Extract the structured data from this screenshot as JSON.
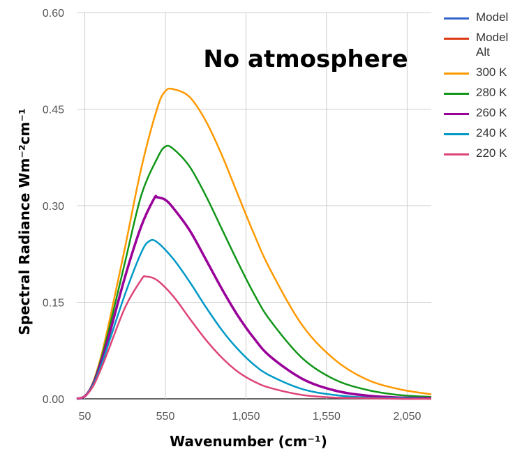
{
  "chart_data": {
    "type": "line",
    "title": "",
    "annotation": "No atmosphere",
    "xlabel": "Wavenumber (cm⁻¹)",
    "ylabel": "Spectral Radiance Wm⁻²cm⁻¹",
    "xlim": [
      0,
      2200
    ],
    "ylim": [
      0,
      0.6
    ],
    "x_ticks": [
      50,
      550,
      1050,
      1550,
      2050
    ],
    "x_tick_labels": [
      "50",
      "550",
      "1,050",
      "1,550",
      "2,050"
    ],
    "y_ticks": [
      0,
      0.15,
      0.3,
      0.45,
      0.6
    ],
    "y_tick_labels": [
      "0.00",
      "0.15",
      "0.30",
      "0.45",
      "0.60"
    ],
    "grid": true,
    "legend_position": "right",
    "series": [
      {
        "name": "Model",
        "color": "#3366cc",
        "x": [],
        "y": []
      },
      {
        "name": "Model Alt",
        "color": "#dc3912",
        "x": [],
        "y": []
      },
      {
        "name": "300 K",
        "color": "#ff9900",
        "x": [
          0,
          50,
          100,
          150,
          200,
          300,
          400,
          500,
          550,
          600,
          700,
          800,
          900,
          1000,
          1100,
          1200,
          1400,
          1600,
          1800,
          2000,
          2200
        ],
        "y": [
          0,
          0.004,
          0.025,
          0.065,
          0.118,
          0.236,
          0.358,
          0.452,
          0.478,
          0.481,
          0.469,
          0.432,
          0.379,
          0.317,
          0.256,
          0.201,
          0.114,
          0.061,
          0.03,
          0.015,
          0.007
        ]
      },
      {
        "name": "280 K",
        "color": "#109618",
        "x": [
          0,
          50,
          100,
          150,
          200,
          300,
          400,
          500,
          550,
          600,
          700,
          800,
          900,
          1000,
          1100,
          1200,
          1400,
          1600,
          1800,
          2000,
          2200
        ],
        "y": [
          0,
          0.004,
          0.024,
          0.061,
          0.108,
          0.213,
          0.316,
          0.374,
          0.392,
          0.388,
          0.361,
          0.316,
          0.264,
          0.212,
          0.163,
          0.122,
          0.063,
          0.03,
          0.014,
          0.006,
          0.003
        ]
      },
      {
        "name": "260 K",
        "color": "#990099",
        "x": [
          0,
          50,
          100,
          150,
          200,
          300,
          400,
          480,
          500,
          550,
          600,
          700,
          800,
          900,
          1000,
          1100,
          1200,
          1400,
          1600,
          1800,
          2000,
          2200
        ],
        "y": [
          0,
          0.004,
          0.022,
          0.056,
          0.098,
          0.19,
          0.268,
          0.311,
          0.313,
          0.309,
          0.296,
          0.262,
          0.217,
          0.171,
          0.129,
          0.094,
          0.066,
          0.031,
          0.013,
          0.005,
          0.002,
          0.001
        ]
      },
      {
        "name": "240 K",
        "color": "#0099c6",
        "x": [
          0,
          50,
          100,
          150,
          200,
          300,
          400,
          450,
          500,
          600,
          700,
          800,
          900,
          1000,
          1100,
          1200,
          1400,
          1600,
          1800,
          2000,
          2200
        ],
        "y": [
          0,
          0.004,
          0.021,
          0.051,
          0.088,
          0.163,
          0.227,
          0.245,
          0.243,
          0.217,
          0.182,
          0.143,
          0.107,
          0.077,
          0.053,
          0.036,
          0.015,
          0.006,
          0.002,
          0.001,
          0.0
        ]
      },
      {
        "name": "220 K",
        "color": "#dd4477",
        "x": [
          0,
          50,
          100,
          150,
          200,
          300,
          400,
          430,
          500,
          600,
          700,
          800,
          900,
          1000,
          1100,
          1200,
          1400,
          1600,
          1800,
          2000,
          2200
        ],
        "y": [
          0,
          0.004,
          0.019,
          0.046,
          0.078,
          0.142,
          0.185,
          0.19,
          0.184,
          0.159,
          0.125,
          0.092,
          0.064,
          0.042,
          0.027,
          0.017,
          0.006,
          0.002,
          0.001,
          0.0,
          0.0
        ]
      }
    ]
  }
}
